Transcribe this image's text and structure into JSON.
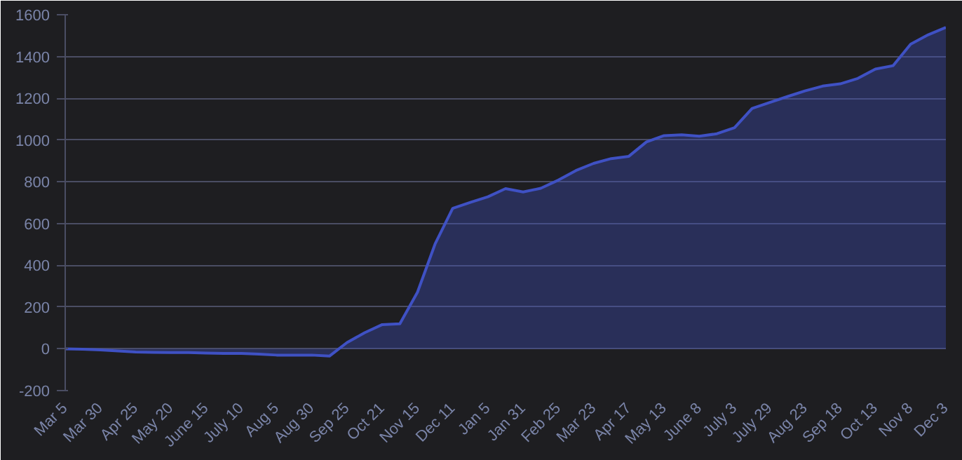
{
  "chart_data": {
    "type": "area",
    "categories": [
      "Mar 5",
      null,
      "Mar 30",
      null,
      "Apr 25",
      null,
      "May 20",
      null,
      "June 15",
      null,
      "July 10",
      null,
      "Aug 5",
      null,
      "Aug 30",
      null,
      "Sep 25",
      null,
      "Oct 21",
      null,
      "Nov 15",
      null,
      "Dec 11",
      null,
      "Jan 5",
      null,
      "Jan 31",
      null,
      "Feb 25",
      null,
      "Mar 23",
      null,
      "Apr 17",
      null,
      "May 13",
      null,
      "June 8",
      null,
      "July 3",
      null,
      "July 29",
      null,
      "Aug 23",
      null,
      "Sep 18",
      null,
      "Oct 13",
      null,
      "Nov 8",
      null,
      "Dec 3"
    ],
    "series": [
      {
        "color": "#3f51c4",
        "values": [
          0,
          -2,
          -5,
          -10,
          -15,
          -17,
          -18,
          -18,
          -20,
          -22,
          -22,
          -25,
          -30,
          -30,
          -30,
          -35,
          30,
          77,
          116,
          120,
          271,
          502,
          673,
          701,
          728,
          767,
          751,
          769,
          808,
          854,
          888,
          911,
          922,
          991,
          1021,
          1025,
          1018,
          1030,
          1059,
          1151,
          1180,
          1208,
          1235,
          1258,
          1269,
          1295,
          1340,
          1356,
          1459,
          1504,
          1539
        ]
      }
    ],
    "ylim": [
      -200,
      1600
    ],
    "yticks": [
      -200,
      0,
      200,
      400,
      600,
      800,
      1000,
      1200,
      1400,
      1600
    ],
    "grid": "y"
  }
}
